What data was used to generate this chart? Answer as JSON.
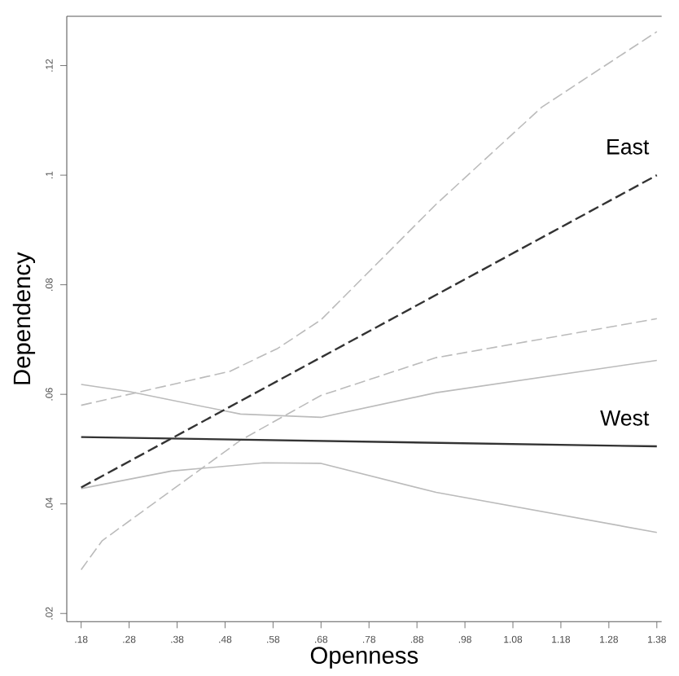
{
  "chart_data": {
    "type": "line",
    "xlabel": "Openness",
    "ylabel": "Dependency",
    "xlim": [
      0.15,
      1.39
    ],
    "ylim": [
      0.0185,
      0.129
    ],
    "xticks": [
      {
        "value": 0.18,
        "label": ".18"
      },
      {
        "value": 0.28,
        "label": ".28"
      },
      {
        "value": 0.38,
        "label": ".38"
      },
      {
        "value": 0.48,
        "label": ".48"
      },
      {
        "value": 0.58,
        "label": ".58"
      },
      {
        "value": 0.68,
        "label": ".68"
      },
      {
        "value": 0.78,
        "label": ".78"
      },
      {
        "value": 0.88,
        "label": ".88"
      },
      {
        "value": 0.98,
        "label": ".98"
      },
      {
        "value": 1.08,
        "label": "1.08"
      },
      {
        "value": 1.18,
        "label": "1.18"
      },
      {
        "value": 1.28,
        "label": "1.28"
      },
      {
        "value": 1.38,
        "label": "1.38"
      }
    ],
    "yticks": [
      {
        "value": 0.02,
        "label": ".02"
      },
      {
        "value": 0.04,
        "label": ".04"
      },
      {
        "value": 0.06,
        "label": ".06"
      },
      {
        "value": 0.08,
        "label": ".08"
      },
      {
        "value": 0.1,
        "label": ".1"
      },
      {
        "value": 0.12,
        "label": ".12"
      }
    ],
    "marker": "none",
    "series": [
      {
        "color": "#bbbbbb",
        "line_style": "dashed",
        "x": [
          0.18,
          0.49,
          0.59,
          0.68,
          0.92,
          1.14,
          1.38
        ],
        "values": [
          0.058,
          0.0642,
          0.0684,
          0.0736,
          0.0947,
          0.1124,
          0.1262
        ]
      },
      {
        "color": "#bbbbbb",
        "line_style": "dashed",
        "x": [
          0.18,
          0.224,
          0.512,
          0.68,
          0.92,
          1.38
        ],
        "values": [
          0.028,
          0.0333,
          0.0516,
          0.0598,
          0.0667,
          0.0738
        ]
      },
      {
        "color": "#bbbbbb",
        "line_style": "solid",
        "x": [
          0.18,
          0.28,
          0.512,
          0.68,
          0.92,
          1.38
        ],
        "values": [
          0.0618,
          0.0605,
          0.0564,
          0.0558,
          0.0603,
          0.0662
        ]
      },
      {
        "color": "#bbbbbb",
        "line_style": "solid",
        "x": [
          0.18,
          0.368,
          0.56,
          0.68,
          0.92,
          1.38
        ],
        "values": [
          0.0428,
          0.046,
          0.0475,
          0.0474,
          0.0421,
          0.0348
        ]
      },
      {
        "name": "East",
        "color": "#333333",
        "line_style": "dashed",
        "x": [
          0.18,
          1.38
        ],
        "values": [
          0.043,
          0.1
        ]
      },
      {
        "name": "West",
        "color": "#333333",
        "line_style": "solid",
        "x": [
          0.18,
          1.38
        ],
        "values": [
          0.0522,
          0.0505
        ]
      }
    ]
  }
}
